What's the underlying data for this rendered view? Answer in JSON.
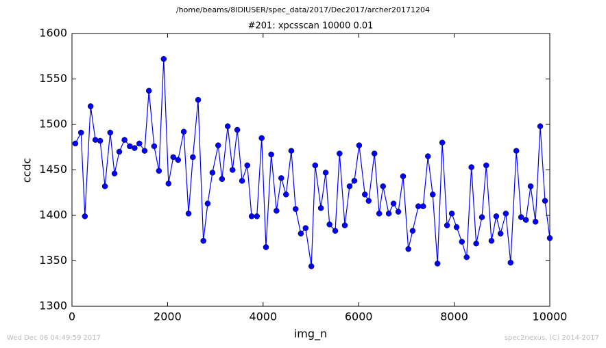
{
  "chart_data": {
    "type": "line",
    "title": "/home/beams/8IDIUSER/spec_data/2017/Dec2017/archer20171204",
    "subtitle": "#201: xpcsscan 10000 0.01",
    "xlabel": "img_n",
    "ylabel": "ccdc",
    "footer_left": "Wed Dec 06 04:49:59 2017",
    "footer_right": "spec2nexus, (C) 2014-2017",
    "x": [
      70,
      190,
      270,
      390,
      490,
      590,
      690,
      800,
      890,
      990,
      1100,
      1210,
      1310,
      1410,
      1520,
      1610,
      1720,
      1820,
      1920,
      2020,
      2120,
      2220,
      2340,
      2440,
      2530,
      2640,
      2750,
      2840,
      2940,
      3060,
      3140,
      3260,
      3360,
      3460,
      3560,
      3670,
      3760,
      3870,
      3970,
      4060,
      4170,
      4280,
      4380,
      4480,
      4590,
      4680,
      4790,
      4890,
      5010,
      5090,
      5210,
      5310,
      5390,
      5510,
      5600,
      5710,
      5810,
      5910,
      6010,
      6130,
      6210,
      6330,
      6430,
      6510,
      6630,
      6730,
      6830,
      6930,
      7040,
      7130,
      7250,
      7350,
      7450,
      7550,
      7650,
      7750,
      7850,
      7950,
      8050,
      8160,
      8260,
      8360,
      8460,
      8580,
      8670,
      8780,
      8880,
      8970,
      9080,
      9180,
      9300,
      9400,
      9500,
      9600,
      9700,
      9800,
      9900,
      10000
    ],
    "series": [
      {
        "name": "ccdc",
        "color": "#0000ff",
        "values": [
          1479,
          1491,
          1399,
          1520,
          1483,
          1482,
          1432,
          1491,
          1446,
          1470,
          1483,
          1476,
          1474,
          1479,
          1471,
          1537,
          1476,
          1449,
          1572,
          1435,
          1464,
          1461,
          1492,
          1402,
          1464,
          1527,
          1372,
          1413,
          1447,
          1477,
          1440,
          1498,
          1450,
          1494,
          1438,
          1455,
          1399,
          1399,
          1485,
          1365,
          1467,
          1405,
          1441,
          1423,
          1471,
          1407,
          1380,
          1386,
          1344,
          1455,
          1408,
          1447,
          1390,
          1383,
          1468,
          1389,
          1432,
          1438,
          1477,
          1423,
          1416,
          1468,
          1402,
          1432,
          1402,
          1413,
          1404,
          1443,
          1363,
          1383,
          1410,
          1410,
          1465,
          1423,
          1347,
          1480,
          1389,
          1402,
          1387,
          1371,
          1354,
          1453,
          1369,
          1398,
          1455,
          1372,
          1399,
          1380,
          1402,
          1348,
          1471,
          1398,
          1395,
          1432,
          1393,
          1498,
          1416,
          1375
        ]
      }
    ],
    "xlim": [
      0,
      10000
    ],
    "xticks": [
      0,
      2000,
      4000,
      6000,
      8000,
      10000
    ],
    "ylim": [
      1300,
      1600
    ],
    "yticks": [
      1300,
      1350,
      1400,
      1450,
      1500,
      1550,
      1600
    ]
  }
}
